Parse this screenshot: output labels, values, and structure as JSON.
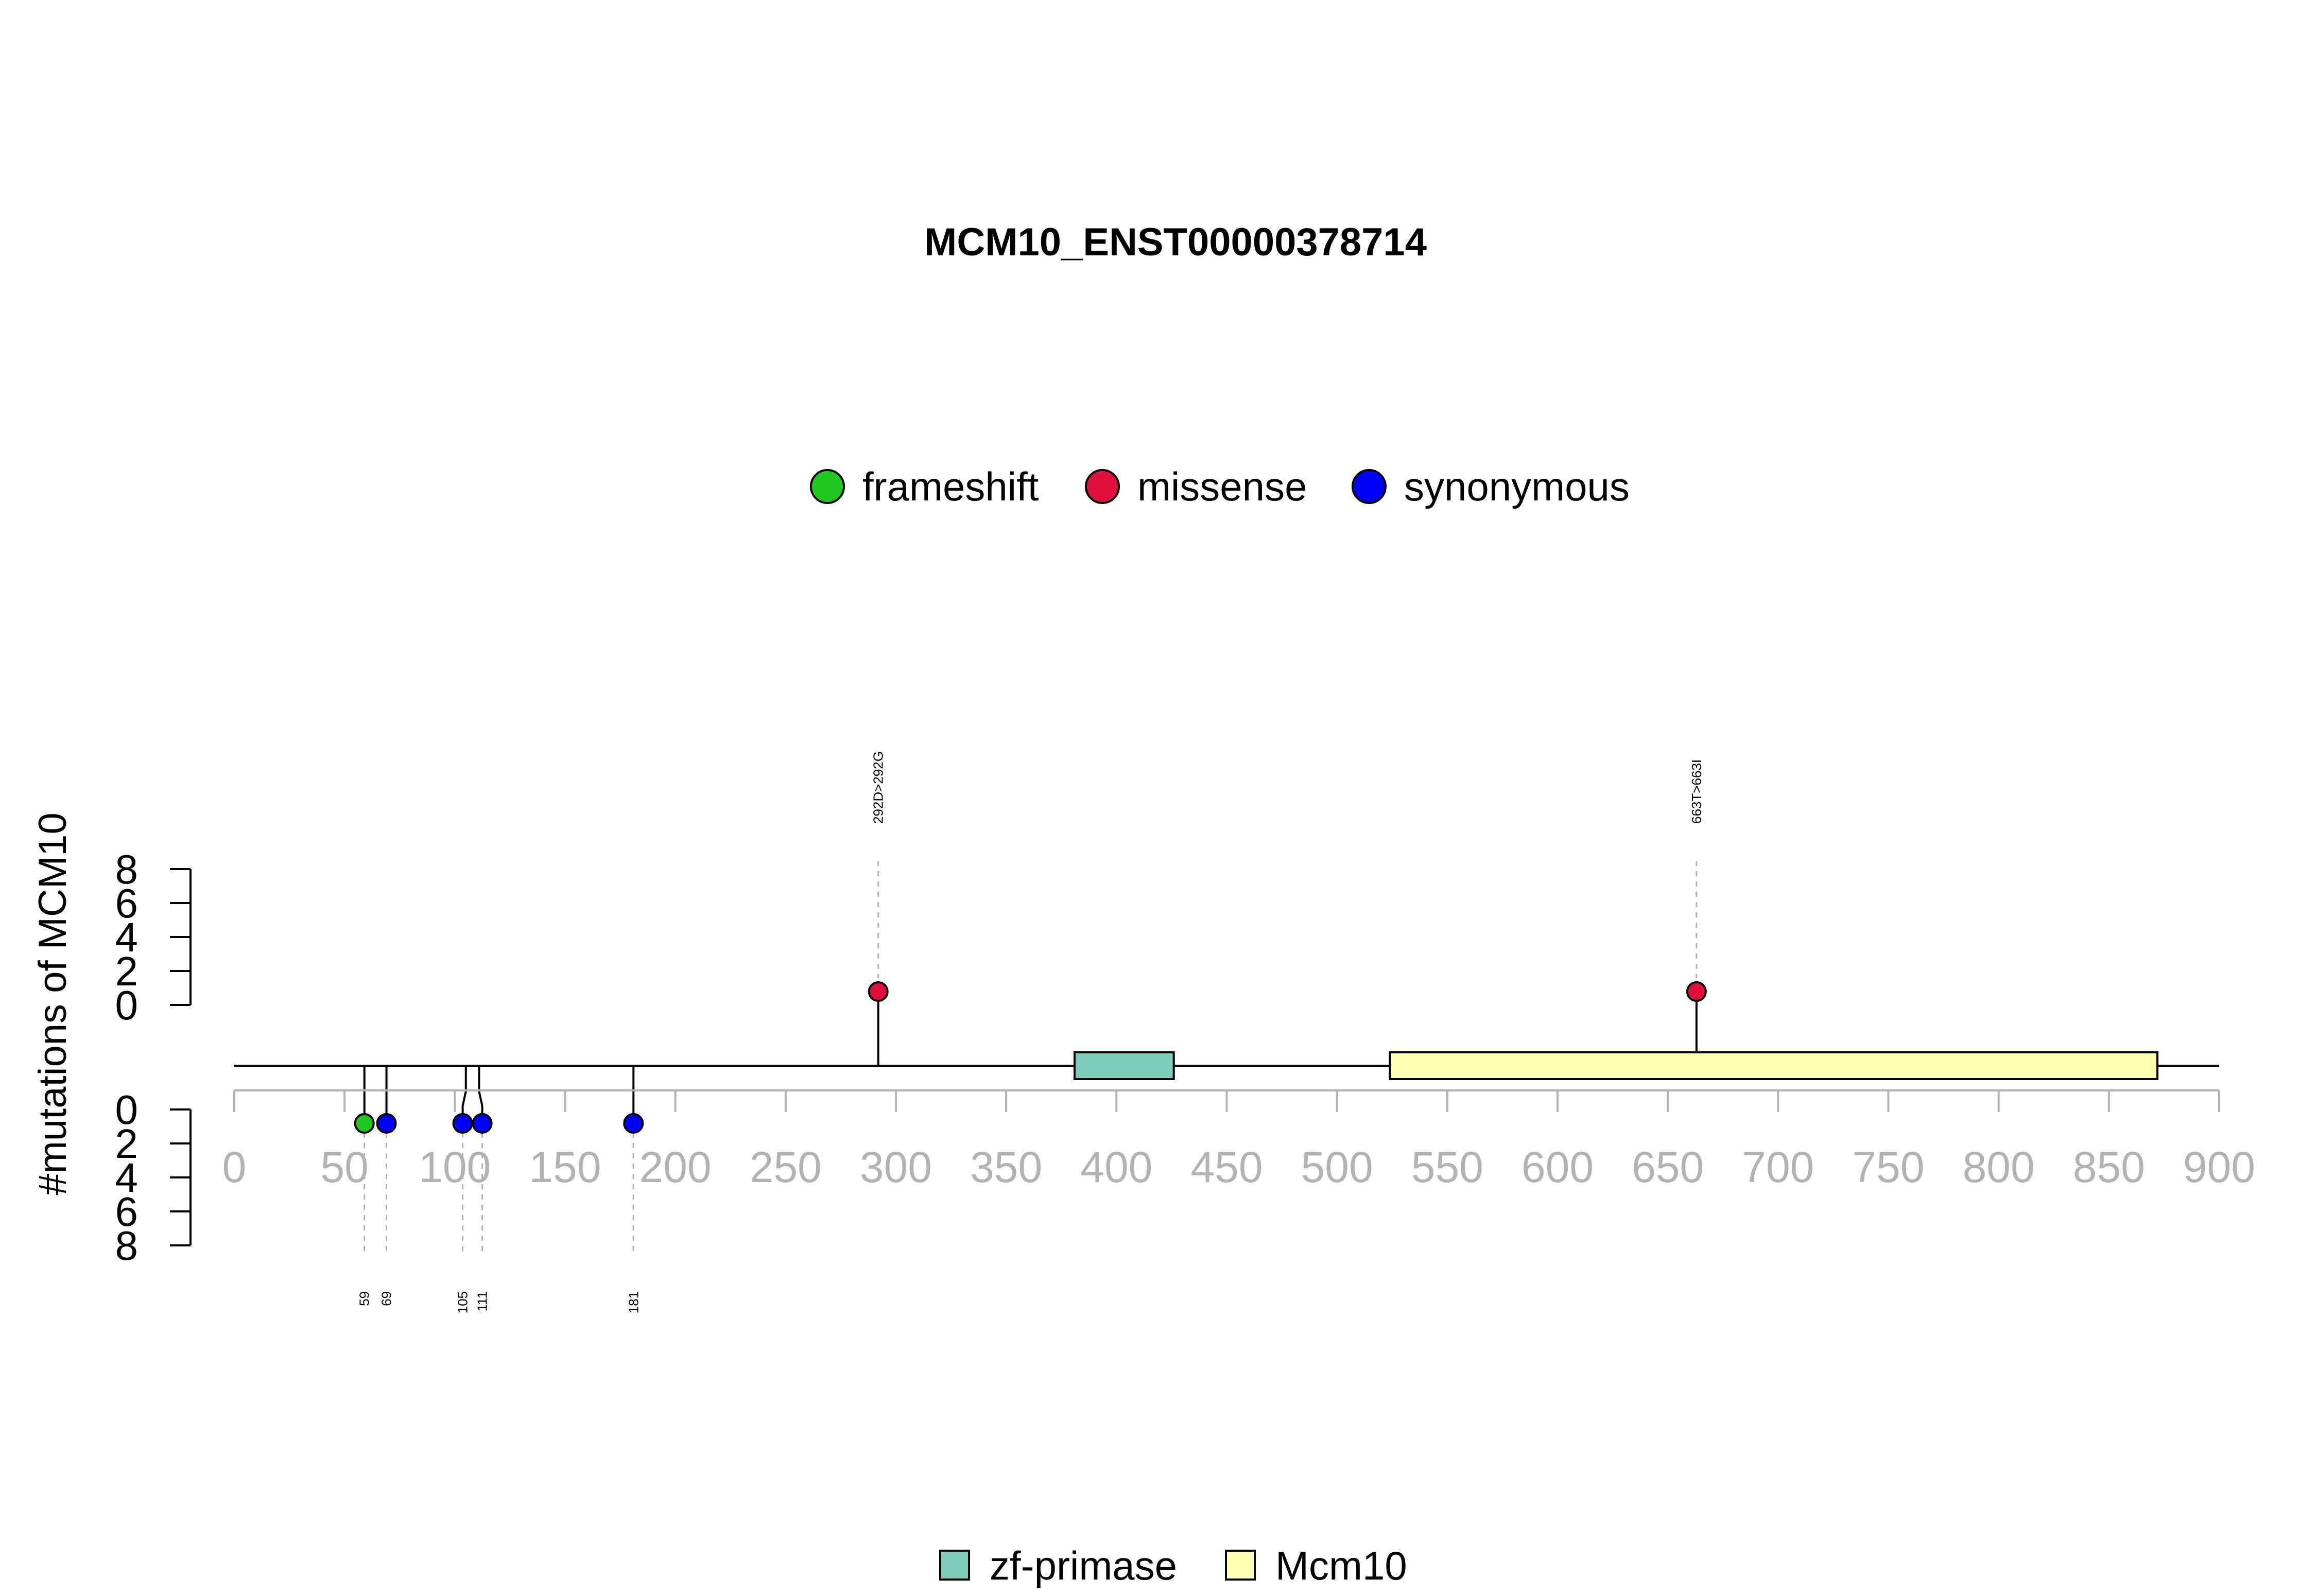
{
  "chart_data": {
    "type": "lollipop",
    "title": "MCM10_ENST00000378714",
    "ylabel": "#mutations of MCM10",
    "xlim": [
      0,
      900
    ],
    "x_ticks": [
      0,
      50,
      100,
      150,
      200,
      250,
      300,
      350,
      400,
      450,
      500,
      550,
      600,
      650,
      700,
      750,
      800,
      850,
      900
    ],
    "y_ticks": [
      0,
      2,
      4,
      6,
      8
    ],
    "ylim": [
      0,
      8
    ],
    "mutation_legend": [
      {
        "name": "frameshift",
        "color": "#1ec81e"
      },
      {
        "name": "missense",
        "color": "#e0103f"
      },
      {
        "name": "synonymous",
        "color": "#0000ff"
      }
    ],
    "domain_legend": [
      {
        "name": "zf-primase",
        "color": "#7fcdbb"
      },
      {
        "name": "Mcm10",
        "color": "#ffffb3"
      }
    ],
    "domains": [
      {
        "name": "zf-primase",
        "start": 381,
        "end": 426,
        "color": "#7fcdbb"
      },
      {
        "name": "Mcm10",
        "start": 524,
        "end": 872,
        "color": "#ffffb3"
      }
    ],
    "mutations_top": [
      {
        "position": 292,
        "count": 1,
        "type": "missense",
        "label": "292D>292G"
      },
      {
        "position": 663,
        "count": 1,
        "type": "missense",
        "label": "663T>663I"
      }
    ],
    "mutations_bottom": [
      {
        "position": 59,
        "count": 1,
        "type": "frameshift",
        "label": "59"
      },
      {
        "position": 69,
        "count": 1,
        "type": "synonymous",
        "label": "69"
      },
      {
        "position": 105,
        "count": 1,
        "type": "synonymous",
        "label": "105"
      },
      {
        "position": 111,
        "count": 1,
        "type": "synonymous",
        "label": "111"
      },
      {
        "position": 181,
        "count": 1,
        "type": "synonymous",
        "label": "181"
      }
    ]
  }
}
